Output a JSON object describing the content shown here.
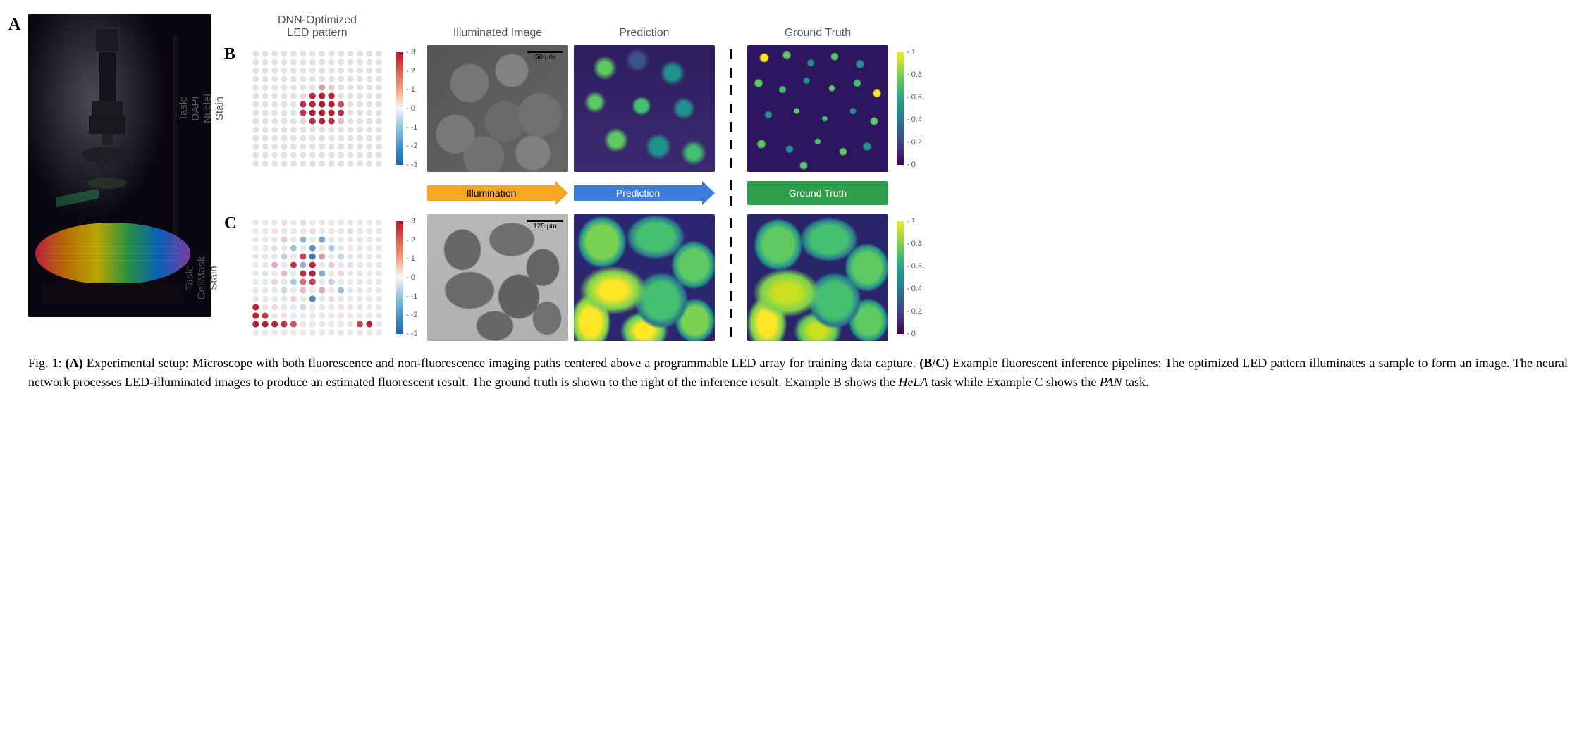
{
  "panelA": {
    "label": "A"
  },
  "headers": {
    "led": "DNN-Optimized\nLED pattern",
    "illum": "Illuminated Image",
    "pred": "Prediction",
    "gt": "Ground Truth"
  },
  "rowB": {
    "label": "B",
    "ylabel": "Task: DAPI\nNuclei Stain",
    "led": {
      "grid_n": 14,
      "dot_base_color": "#e2e2e2",
      "colormap_pos": "#b2182b",
      "colormap_neg": "#2166ac",
      "dots": [
        {
          "r": 4,
          "c": 7,
          "v": 1.2
        },
        {
          "r": 4,
          "c": 8,
          "v": 0.6
        },
        {
          "r": 5,
          "c": 5,
          "v": 0.4
        },
        {
          "r": 5,
          "c": 6,
          "v": 2.8
        },
        {
          "r": 5,
          "c": 7,
          "v": 2.9
        },
        {
          "r": 5,
          "c": 8,
          "v": 2.9
        },
        {
          "r": 6,
          "c": 5,
          "v": 2.7
        },
        {
          "r": 6,
          "c": 6,
          "v": 2.9
        },
        {
          "r": 6,
          "c": 7,
          "v": 3.0
        },
        {
          "r": 6,
          "c": 8,
          "v": 2.9
        },
        {
          "r": 6,
          "c": 9,
          "v": 2.2
        },
        {
          "r": 7,
          "c": 5,
          "v": 2.6
        },
        {
          "r": 7,
          "c": 6,
          "v": 2.9
        },
        {
          "r": 7,
          "c": 7,
          "v": 3.0
        },
        {
          "r": 7,
          "c": 8,
          "v": 2.9
        },
        {
          "r": 7,
          "c": 9,
          "v": 2.6
        },
        {
          "r": 8,
          "c": 5,
          "v": 0.5
        },
        {
          "r": 8,
          "c": 6,
          "v": 2.7
        },
        {
          "r": 8,
          "c": 7,
          "v": 2.8
        },
        {
          "r": 8,
          "c": 8,
          "v": 2.7
        },
        {
          "r": 8,
          "c": 9,
          "v": 0.8
        },
        {
          "r": 9,
          "c": 7,
          "v": 0.4
        }
      ]
    },
    "led_colorbar": {
      "gradient": [
        "#b2182b",
        "#d6604d",
        "#f4a582",
        "#f7f7f7",
        "#92c5de",
        "#4393c3",
        "#2166ac"
      ],
      "ticks": [
        3,
        2,
        1,
        0,
        -1,
        -2,
        -3
      ]
    },
    "illum": {
      "bg": "radial-gradient(circle at 30% 30%, #777 0 14%, transparent 15%), radial-gradient(circle at 60% 20%, #828282 0 12%, transparent 13%), radial-gradient(circle at 80% 55%, #707070 0 16%, transparent 17%), radial-gradient(circle at 20% 70%, #787878 0 13%, transparent 14%), radial-gradient(circle at 55% 60%, #6a6a6a 0 18%, transparent 19%), radial-gradient(circle at 75% 85%, #808080 0 11%, transparent 12%), radial-gradient(circle at 40% 88%, #727272 0 14%, transparent 15%), linear-gradient(135deg, #555 0%, #666 100%)",
      "scalebar": "50 μm"
    },
    "pred": {
      "bg": "radial-gradient(circle at 22% 18%, #5ec962 0 4%, transparent 8%), radial-gradient(circle at 45% 12%, #3b528b 0 5%, transparent 9%), radial-gradient(circle at 70% 22%, #21918c 0 5%, transparent 9%), radial-gradient(circle at 15% 45%, #5ec962 0 4%, transparent 8%), radial-gradient(circle at 48% 48%, #44bf70 0 6%, transparent 10%), radial-gradient(circle at 78% 50%, #21918c 0 5%, transparent 9%), radial-gradient(circle at 30% 75%, #5ec962 0 5%, transparent 9%), radial-gradient(circle at 60% 80%, #21918c 0 6%, transparent 10%), radial-gradient(circle at 85% 85%, #44bf70 0 4%, transparent 8%), linear-gradient(#2d1e5f, #3b2a70)"
    },
    "gt": {
      "bg": "radial-gradient(circle at 12% 10%, #fde725 0 2%, transparent 3%), radial-gradient(circle at 28% 8%, #5ec962 0 2%, transparent 3%), radial-gradient(circle at 45% 14%, #21918c 0 2%, transparent 3%), radial-gradient(circle at 62% 9%, #5ec962 0 2%, transparent 3%), radial-gradient(circle at 80% 15%, #21918c 0 2%, transparent 3%), radial-gradient(circle at 8% 30%, #5ec962 0 2%, transparent 3%), radial-gradient(circle at 25% 35%, #44bf70 0 2%, transparent 3%), radial-gradient(circle at 42% 28%, #21918c 0 2%, transparent 3%), radial-gradient(circle at 60% 34%, #5ec962 0 2%, transparent 3%), radial-gradient(circle at 78% 30%, #44bf70 0 2%, transparent 3%), radial-gradient(circle at 92% 38%, #fde725 0 2%, transparent 3%), radial-gradient(circle at 15% 55%, #21918c 0 2%, transparent 3%), radial-gradient(circle at 35% 52%, #5ec962 0 2%, transparent 3%), radial-gradient(circle at 55% 58%, #44bf70 0 2%, transparent 3%), radial-gradient(circle at 75% 52%, #21918c 0 2%, transparent 3%), radial-gradient(circle at 90% 60%, #5ec962 0 2%, transparent 3%), radial-gradient(circle at 10% 78%, #5ec962 0 2%, transparent 3%), radial-gradient(circle at 30% 82%, #21918c 0 2%, transparent 3%), radial-gradient(circle at 50% 76%, #44bf70 0 2%, transparent 3%), radial-gradient(circle at 68% 84%, #5ec962 0 2%, transparent 3%), radial-gradient(circle at 85% 80%, #21918c 0 2%, transparent 3%), radial-gradient(circle at 40% 95%, #5ec962 0 2%, transparent 3%), #2d1560"
    },
    "gt_colorbar": {
      "gradient": [
        "#fde725",
        "#7ad151",
        "#22a884",
        "#2a788e",
        "#414487",
        "#440154"
      ],
      "ticks": [
        1.0,
        0.8,
        0.6,
        0.4,
        0.2,
        0.0
      ]
    }
  },
  "rowC": {
    "label": "C",
    "ylabel": "Task:\nCellMask Stain",
    "led": {
      "grid_n": 14,
      "dot_base_color": "#e8e8e8",
      "colormap_pos": "#b2182b",
      "colormap_neg": "#2166ac",
      "dots": [
        {
          "r": 0,
          "c": 3,
          "v": 0.4
        },
        {
          "r": 0,
          "c": 5,
          "v": -0.5
        },
        {
          "r": 0,
          "c": 9,
          "v": 0.3
        },
        {
          "r": 1,
          "c": 2,
          "v": 0.3
        },
        {
          "r": 1,
          "c": 6,
          "v": 0.4
        },
        {
          "r": 1,
          "c": 10,
          "v": -0.4
        },
        {
          "r": 2,
          "c": 3,
          "v": 0.6
        },
        {
          "r": 2,
          "c": 5,
          "v": -1.4
        },
        {
          "r": 2,
          "c": 7,
          "v": -1.8
        },
        {
          "r": 2,
          "c": 11,
          "v": 0.3
        },
        {
          "r": 3,
          "c": 2,
          "v": 0.4
        },
        {
          "r": 3,
          "c": 4,
          "v": -1.2
        },
        {
          "r": 3,
          "c": 6,
          "v": -2.2
        },
        {
          "r": 3,
          "c": 8,
          "v": -1.0
        },
        {
          "r": 4,
          "c": 1,
          "v": 0.3
        },
        {
          "r": 4,
          "c": 3,
          "v": -0.8
        },
        {
          "r": 4,
          "c": 5,
          "v": 2.4
        },
        {
          "r": 4,
          "c": 6,
          "v": -2.6
        },
        {
          "r": 4,
          "c": 7,
          "v": 1.2
        },
        {
          "r": 4,
          "c": 9,
          "v": -0.6
        },
        {
          "r": 5,
          "c": 2,
          "v": 1.0
        },
        {
          "r": 5,
          "c": 4,
          "v": 2.6
        },
        {
          "r": 5,
          "c": 5,
          "v": -1.4
        },
        {
          "r": 5,
          "c": 6,
          "v": 2.8
        },
        {
          "r": 5,
          "c": 8,
          "v": 0.6
        },
        {
          "r": 5,
          "c": 10,
          "v": -0.4
        },
        {
          "r": 6,
          "c": 1,
          "v": -0.4
        },
        {
          "r": 6,
          "c": 3,
          "v": 0.8
        },
        {
          "r": 6,
          "c": 5,
          "v": 2.7
        },
        {
          "r": 6,
          "c": 6,
          "v": 2.9
        },
        {
          "r": 6,
          "c": 7,
          "v": -1.6
        },
        {
          "r": 6,
          "c": 9,
          "v": 0.4
        },
        {
          "r": 7,
          "c": 2,
          "v": 0.5
        },
        {
          "r": 7,
          "c": 4,
          "v": -1.0
        },
        {
          "r": 7,
          "c": 5,
          "v": 1.8
        },
        {
          "r": 7,
          "c": 6,
          "v": 2.4
        },
        {
          "r": 7,
          "c": 8,
          "v": -0.8
        },
        {
          "r": 7,
          "c": 11,
          "v": 0.3
        },
        {
          "r": 8,
          "c": 3,
          "v": -0.6
        },
        {
          "r": 8,
          "c": 5,
          "v": 0.8
        },
        {
          "r": 8,
          "c": 7,
          "v": 1.0
        },
        {
          "r": 8,
          "c": 9,
          "v": -1.2
        },
        {
          "r": 9,
          "c": 0,
          "v": 0.3
        },
        {
          "r": 9,
          "c": 4,
          "v": 0.5
        },
        {
          "r": 9,
          "c": 6,
          "v": -2.4
        },
        {
          "r": 9,
          "c": 8,
          "v": 0.4
        },
        {
          "r": 9,
          "c": 12,
          "v": -0.3
        },
        {
          "r": 10,
          "c": 0,
          "v": 2.8
        },
        {
          "r": 10,
          "c": 2,
          "v": 0.4
        },
        {
          "r": 10,
          "c": 5,
          "v": -0.6
        },
        {
          "r": 10,
          "c": 9,
          "v": 0.3
        },
        {
          "r": 11,
          "c": 0,
          "v": 2.9
        },
        {
          "r": 11,
          "c": 1,
          "v": 2.6
        },
        {
          "r": 11,
          "c": 3,
          "v": 0.3
        },
        {
          "r": 12,
          "c": 0,
          "v": 2.9
        },
        {
          "r": 12,
          "c": 1,
          "v": 2.9
        },
        {
          "r": 12,
          "c": 2,
          "v": 2.8
        },
        {
          "r": 12,
          "c": 3,
          "v": 2.6
        },
        {
          "r": 12,
          "c": 4,
          "v": 2.2
        },
        {
          "r": 12,
          "c": 11,
          "v": 2.4
        },
        {
          "r": 12,
          "c": 12,
          "v": 2.8
        }
      ]
    },
    "led_colorbar": {
      "gradient": [
        "#b2182b",
        "#d6604d",
        "#f4a582",
        "#f7f7f7",
        "#92c5de",
        "#4393c3",
        "#2166ac"
      ],
      "ticks": [
        3,
        2,
        1,
        0,
        -1,
        -2,
        -3
      ]
    },
    "illum": {
      "bg": "radial-gradient(ellipse 18% 22% at 25% 28%, #666 0 70%, transparent 75%), radial-gradient(ellipse 22% 18% at 60% 20%, #6e6e6e 0 70%, transparent 75%), radial-gradient(ellipse 16% 20% at 82% 42%, #646464 0 70%, transparent 75%), radial-gradient(ellipse 24% 20% at 30% 60%, #6a6a6a 0 70%, transparent 75%), radial-gradient(ellipse 20% 24% at 65% 65%, #606060 0 70%, transparent 75%), radial-gradient(ellipse 18% 16% at 48% 88%, #686868 0 70%, transparent 75%), radial-gradient(ellipse 14% 18% at 85% 82%, #707070 0 70%, transparent 75%), linear-gradient(#b8b8b8, #b0b0b0)",
      "scalebar": "125 μm"
    },
    "pred": {
      "bg": "radial-gradient(ellipse 22% 26% at 20% 22%, #7ad151 0 50%, #21918c 70%, transparent 80%), radial-gradient(ellipse 26% 22% at 58% 18%, #44bf70 0 50%, #2a788e 70%, transparent 80%), radial-gradient(ellipse 20% 24% at 85% 40%, #5ec962 0 50%, #21918c 70%, transparent 80%), radial-gradient(ellipse 30% 24% at 28% 60%, #fde725 0 30%, #7ad151 60%, transparent 80%), radial-gradient(ellipse 18% 28% at 12% 85%, #fde725 0 40%, #7ad151 65%, transparent 80%), radial-gradient(ellipse 24% 28% at 62% 68%, #44bf70 0 50%, #2a788e 70%, transparent 80%), radial-gradient(ellipse 22% 20% at 50% 92%, #fde725 0 30%, #5ec962 60%, transparent 78%), radial-gradient(ellipse 18% 22% at 86% 84%, #7ad151 0 50%, #21918c 70%, transparent 80%), #2d2670"
    },
    "gt": {
      "bg": "radial-gradient(ellipse 22% 26% at 22% 24%, #5ec962 0 50%, #21918c 70%, transparent 80%), radial-gradient(ellipse 26% 22% at 58% 20%, #44bf70 0 50%, #2a788e 70%, transparent 80%), radial-gradient(ellipse 20% 24% at 85% 42%, #5ec962 0 50%, #21918c 70%, transparent 80%), radial-gradient(ellipse 30% 24% at 28% 62%, #c8e020 0 30%, #7ad151 60%, transparent 80%), radial-gradient(ellipse 18% 28% at 14% 86%, #fde725 0 35%, #7ad151 62%, transparent 80%), radial-gradient(ellipse 24% 28% at 62% 68%, #44bf70 0 50%, #2a788e 70%, transparent 80%), radial-gradient(ellipse 22% 20% at 50% 92%, #c8e020 0 28%, #5ec962 58%, transparent 78%), radial-gradient(ellipse 18% 22% at 86% 84%, #5ec962 0 50%, #21918c 70%, transparent 80%), #2a2468"
    },
    "gt_colorbar": {
      "gradient": [
        "#fde725",
        "#7ad151",
        "#22a884",
        "#2a788e",
        "#414487",
        "#440154"
      ],
      "ticks": [
        1.0,
        0.8,
        0.6,
        0.4,
        0.2,
        0.0
      ]
    }
  },
  "arrows": {
    "illum": {
      "label": "Illumination",
      "color": "#f5a623",
      "text_color": "#000"
    },
    "pred": {
      "label": "Prediction",
      "color": "#3b7dd8",
      "text_color": "#fff"
    },
    "gt": {
      "label": "Ground Truth",
      "color": "#2e9e4a",
      "text_color": "#fff"
    }
  },
  "caption": {
    "fignum": "Fig. 1:",
    "partA_label": "(A)",
    "partA_text": " Experimental setup: Microscope with both fluorescence and non-fluorescence imaging paths centered above a programmable LED array for training data capture. ",
    "partBC_label": "(B/C)",
    "partBC_text": " Example fluorescent inference pipelines: The optimized LED pattern illuminates a sample to form an image. The neural network processes LED-illuminated images to produce an estimated fluorescent result. The ground truth is shown to the right of the inference result. Example B shows the ",
    "hela": "HeLA",
    "mid": " task while Example C shows the ",
    "pan": "PAN",
    "end": " task."
  }
}
